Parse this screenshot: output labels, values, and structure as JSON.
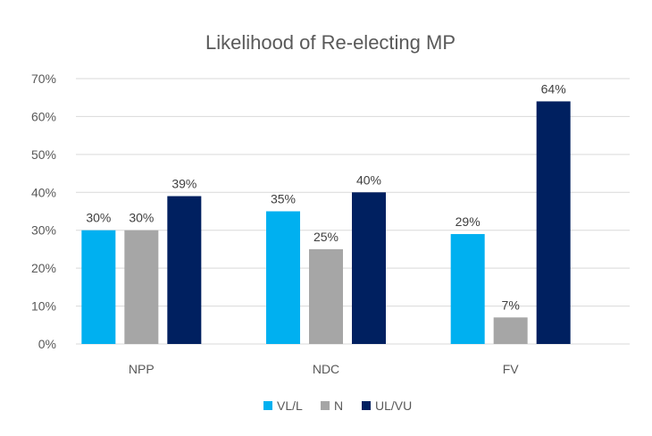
{
  "chart_data": {
    "type": "bar",
    "title": "Likelihood of Re-electing MP",
    "xlabel": "",
    "ylabel": "",
    "categories": [
      "NPP",
      "NDC",
      "FV"
    ],
    "series": [
      {
        "name": "VL/L",
        "color": "#00B0F0",
        "values": [
          30,
          35,
          29
        ],
        "labels": [
          "30%",
          "35%",
          "29%"
        ]
      },
      {
        "name": "N",
        "color": "#A6A6A6",
        "values": [
          30,
          25,
          7
        ],
        "labels": [
          "30%",
          "25%",
          "7%"
        ]
      },
      {
        "name": "UL/VU",
        "color": "#002060",
        "values": [
          39,
          40,
          64
        ],
        "labels": [
          "39%",
          "40%",
          "64%"
        ]
      }
    ],
    "ylim": [
      0,
      70
    ],
    "yticks": [
      "0%",
      "10%",
      "20%",
      "30%",
      "40%",
      "50%",
      "60%",
      "70%"
    ],
    "grid": true,
    "legend_position": "bottom"
  }
}
